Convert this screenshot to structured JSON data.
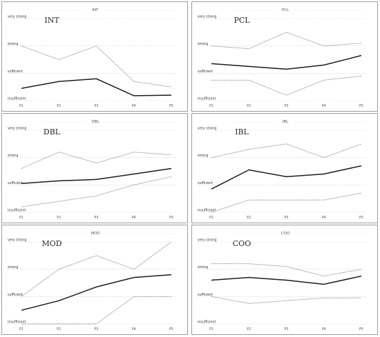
{
  "chart_data": [
    {
      "type": "line",
      "title": "INT",
      "categories": [
        "P1",
        "P2",
        "P3",
        "P4",
        "P5"
      ],
      "y_levels": [
        "insufficient",
        "sufficient",
        "strong",
        "very strong"
      ],
      "ylim": [
        0,
        3
      ],
      "series": [
        {
          "style": "dotted",
          "values": [
            2.0,
            1.5,
            2.0,
            0.7,
            0.5
          ]
        },
        {
          "style": "solid",
          "values": [
            0.45,
            0.7,
            0.8,
            0.18,
            0.2
          ]
        }
      ]
    },
    {
      "type": "line",
      "title": "PCL",
      "categories": [
        "P1",
        "P2",
        "P3",
        "P4",
        "P5"
      ],
      "y_levels": [
        "insufficient",
        "sufficient",
        "strong",
        "very strong"
      ],
      "ylim": [
        0,
        3
      ],
      "series": [
        {
          "style": "dotted",
          "values": [
            2.0,
            1.9,
            2.5,
            2.0,
            2.1
          ]
        },
        {
          "style": "solid",
          "values": [
            1.35,
            1.25,
            1.15,
            1.3,
            1.65
          ]
        },
        {
          "style": "dotted",
          "values": [
            0.75,
            0.75,
            0.2,
            0.75,
            0.9
          ]
        }
      ]
    },
    {
      "type": "line",
      "title": "DBL",
      "categories": [
        "P1",
        "P2",
        "P3",
        "P4",
        "P5"
      ],
      "y_levels": [
        "insufficient",
        "sufficient",
        "strong",
        "very strong"
      ],
      "ylim": [
        0,
        3
      ],
      "series": [
        {
          "style": "dotted",
          "values": [
            1.6,
            2.2,
            1.8,
            2.2,
            2.1
          ]
        },
        {
          "style": "solid",
          "values": [
            1.05,
            1.15,
            1.2,
            1.4,
            1.6
          ]
        },
        {
          "style": "dotted",
          "values": [
            0.2,
            0.4,
            0.6,
            1.0,
            1.3
          ]
        }
      ]
    },
    {
      "type": "line",
      "title": "IBL",
      "categories": [
        "P1",
        "P2",
        "P3",
        "P4",
        "P5"
      ],
      "y_levels": [
        "insufficient",
        "sufficient",
        "strong",
        "very strong"
      ],
      "ylim": [
        0,
        3
      ],
      "series": [
        {
          "style": "dotted",
          "values": [
            2.0,
            2.3,
            2.5,
            2.0,
            2.5
          ]
        },
        {
          "style": "solid",
          "values": [
            0.85,
            1.55,
            1.3,
            1.4,
            1.7
          ]
        },
        {
          "style": "dotted",
          "values": [
            0.0,
            0.45,
            0.45,
            0.45,
            0.7
          ]
        }
      ]
    },
    {
      "type": "line",
      "title": "MOD",
      "categories": [
        "P1",
        "P2",
        "P3",
        "P4",
        "P5"
      ],
      "y_levels": [
        "insufficient",
        "sufficient",
        "strong",
        "very strong"
      ],
      "ylim": [
        0,
        3
      ],
      "series": [
        {
          "style": "dotted",
          "values": [
            1.0,
            2.0,
            2.5,
            2.0,
            3.0
          ]
        },
        {
          "style": "solid",
          "values": [
            0.5,
            0.85,
            1.35,
            1.7,
            1.8
          ]
        },
        {
          "style": "dotted",
          "values": [
            0.0,
            0.0,
            0.0,
            1.0,
            1.0
          ]
        }
      ]
    },
    {
      "type": "line",
      "title": "COO",
      "categories": [
        "P1",
        "P2",
        "P3",
        "P4",
        "P5"
      ],
      "y_levels": [
        "insufficient",
        "sufficient",
        "strong",
        "very strong"
      ],
      "ylim": [
        0,
        3
      ],
      "series": [
        {
          "style": "dotted",
          "values": [
            2.2,
            2.2,
            2.1,
            1.75,
            2.0
          ]
        },
        {
          "style": "solid",
          "values": [
            1.6,
            1.7,
            1.6,
            1.45,
            1.75
          ]
        },
        {
          "style": "dotted",
          "values": [
            1.0,
            0.75,
            0.85,
            0.95,
            0.95
          ]
        }
      ]
    }
  ]
}
